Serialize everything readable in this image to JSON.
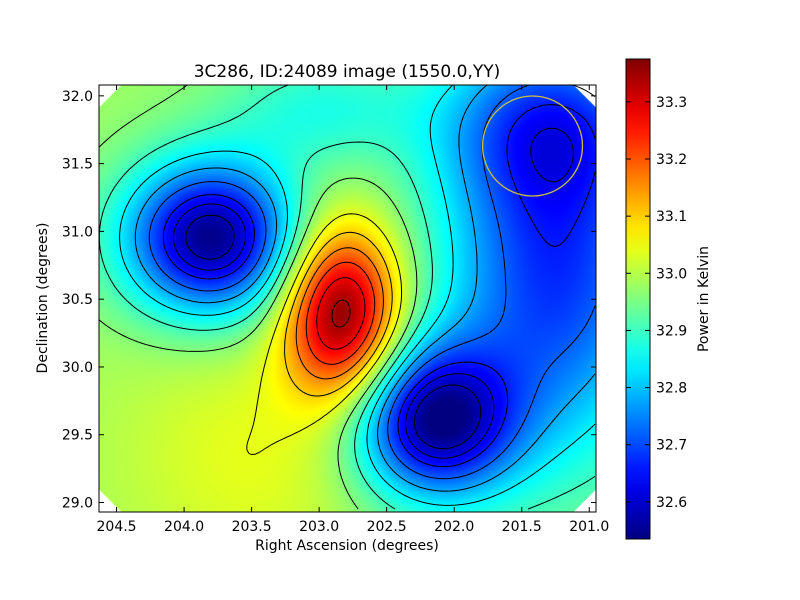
{
  "chart_data": {
    "type": "heatmap",
    "title": "3C286, ID:24089 image (1550.0,YY)",
    "xlabel": "Right Ascension (degrees)",
    "ylabel": "Declination (degrees)",
    "colorbar_label": "Power in Kelvin",
    "xlim": [
      204.63,
      200.95
    ],
    "ylim": [
      28.93,
      32.08
    ],
    "x_ticks": [
      204.5,
      204.0,
      203.5,
      203.0,
      202.5,
      202.0,
      201.5,
      201.0
    ],
    "x_tick_labels": [
      "204.5",
      "204.0",
      "203.5",
      "203.0",
      "202.5",
      "202.0",
      "201.5",
      "201.0"
    ],
    "y_ticks": [
      29.0,
      29.5,
      30.0,
      30.5,
      31.0,
      31.5,
      32.0
    ],
    "y_tick_labels": [
      "29.0",
      "29.5",
      "30.0",
      "30.5",
      "31.0",
      "31.5",
      "32.0"
    ],
    "colorbar_range": [
      32.535,
      33.375
    ],
    "colorbar_ticks": [
      32.6,
      32.7,
      32.8,
      32.9,
      33.0,
      33.1,
      33.2,
      33.3
    ],
    "colorbar_tick_labels": [
      "32.6",
      "32.7",
      "32.8",
      "32.9",
      "33.0",
      "33.1",
      "33.2",
      "33.3"
    ],
    "colormap": "jet",
    "background_level": 32.98,
    "field_components": [
      {
        "ra": 202.83,
        "dec": 30.4,
        "amplitude": 0.4,
        "sigma_ra": 0.3,
        "sigma_dec": 0.45
      },
      {
        "ra": 203.5,
        "dec": 29.35,
        "amplitude": 0.06,
        "sigma_ra": 0.7,
        "sigma_dec": 0.7
      },
      {
        "ra": 203.8,
        "dec": 30.95,
        "amplitude": -0.44,
        "sigma_ra": 0.45,
        "sigma_dec": 0.4
      },
      {
        "ra": 202.15,
        "dec": 29.6,
        "amplitude": -0.42,
        "sigma_ra": 0.42,
        "sigma_dec": 0.4
      },
      {
        "ra": 201.25,
        "dec": 30.7,
        "amplitude": -0.3,
        "sigma_ra": 0.6,
        "sigma_dec": 0.95
      },
      {
        "ra": 201.3,
        "dec": 31.8,
        "amplitude": -0.2,
        "sigma_ra": 0.6,
        "sigma_dec": 0.45
      },
      {
        "ra": 203.0,
        "dec": 31.9,
        "amplitude": -0.1,
        "sigma_ra": 0.5,
        "sigma_dec": 0.3
      }
    ],
    "contour_levels": [
      32.58,
      32.62,
      32.66,
      32.72,
      32.78,
      32.84,
      32.9,
      32.96,
      33.04,
      33.1,
      33.16,
      33.22,
      33.28,
      33.34
    ],
    "beam_marker": {
      "ra": 201.42,
      "dec": 31.63,
      "radius_deg": 0.37,
      "color": "#c8c040"
    },
    "colors": {
      "contour": "#000000",
      "frame": "#000000",
      "background": "#ffffff"
    }
  }
}
